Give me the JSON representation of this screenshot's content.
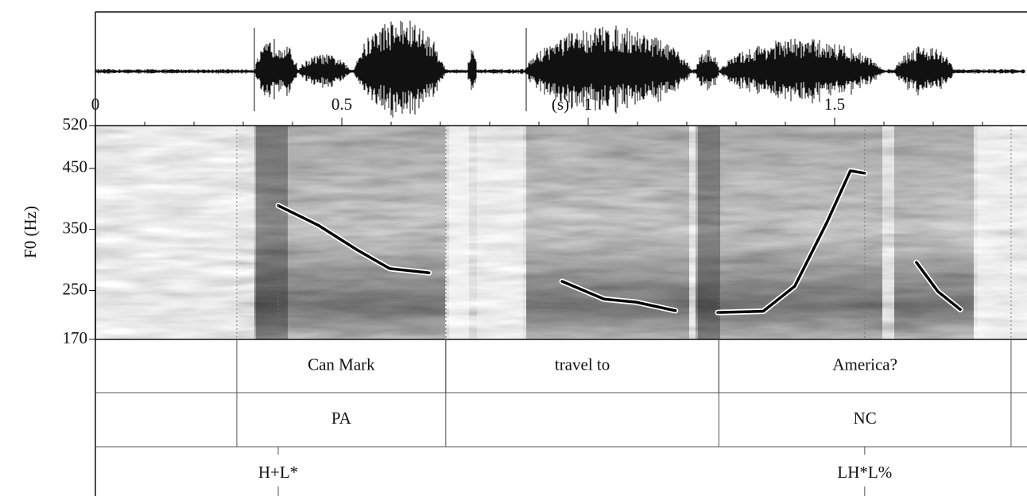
{
  "chart_data": {
    "type": "line",
    "ylabel": "F0 (Hz)",
    "xlabel": "(s)",
    "xlim": [
      0,
      1.89
    ],
    "ylim": [
      170,
      520
    ],
    "xticks": [
      0,
      0.5,
      1,
      1.5
    ],
    "xminorticks": [
      0.1,
      0.2,
      0.3,
      0.4,
      0.6,
      0.7,
      0.8,
      0.9,
      1.1,
      1.2,
      1.3,
      1.4,
      1.6,
      1.7,
      1.8
    ],
    "yticks": [
      170,
      250,
      350,
      450,
      520
    ],
    "series": [
      {
        "color": "#000000",
        "x": [
          0.371,
          0.452,
          0.532,
          0.597,
          0.677
        ],
        "values": [
          389,
          357,
          316,
          286,
          279
        ]
      },
      {
        "color": "#000000",
        "x": [
          0.947,
          1.032,
          1.097,
          1.177
        ],
        "values": [
          265,
          236,
          231,
          217
        ]
      },
      {
        "color": "#000000",
        "x": [
          1.263,
          1.355,
          1.419,
          1.484,
          1.532,
          1.561
        ],
        "values": [
          214,
          216,
          257,
          361,
          446,
          442
        ]
      },
      {
        "color": "#000000",
        "x": [
          1.666,
          1.71,
          1.755
        ],
        "values": [
          296,
          248,
          219
        ]
      }
    ],
    "tiers": [
      {
        "intervals": [
          {
            "xmin": 0.287,
            "xmax": 0.711,
            "text": "Can Mark"
          },
          {
            "xmin": 0.711,
            "xmax": 1.265,
            "text": "travel to"
          },
          {
            "xmin": 1.265,
            "xmax": 1.858,
            "text": "America?"
          }
        ]
      },
      {
        "intervals": [
          {
            "xmin": 0.287,
            "xmax": 0.711,
            "text": "PA"
          },
          {
            "xmin": 1.265,
            "xmax": 1.858,
            "text": "NC"
          }
        ]
      },
      {
        "points": [
          {
            "time": 0.371,
            "text": "H+L*"
          },
          {
            "time": 1.561,
            "text": "LH*L%"
          }
        ]
      }
    ]
  }
}
